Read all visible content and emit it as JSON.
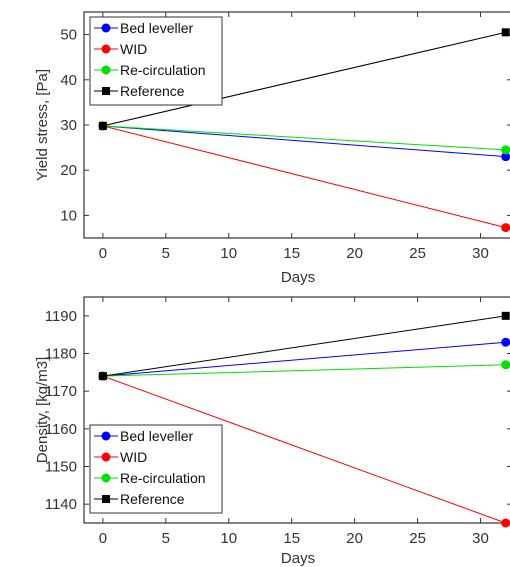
{
  "chart_data": [
    {
      "type": "line",
      "x": [
        0,
        32
      ],
      "xlabel": "Days",
      "ylabel": "Yield stress, [Pa]",
      "xlim": [
        -1.5,
        32.5
      ],
      "ylim": [
        5,
        55
      ],
      "xticks": [
        "0",
        "5",
        "10",
        "15",
        "20",
        "25",
        "30"
      ],
      "yticks": [
        "10",
        "20",
        "30",
        "40",
        "50"
      ],
      "legend_position": "top-left",
      "series": [
        {
          "name": "Bed leveller",
          "color": "#0000ff",
          "marker": "circle",
          "values": [
            29.8,
            23.0
          ]
        },
        {
          "name": "WID",
          "color": "#ff0000",
          "marker": "circle",
          "values": [
            29.8,
            7.3
          ]
        },
        {
          "name": "Re-circulation",
          "color": "#00e000",
          "marker": "circle",
          "values": [
            29.8,
            24.5
          ]
        },
        {
          "name": "Reference",
          "color": "#000000",
          "marker": "square",
          "values": [
            29.8,
            50.5
          ]
        }
      ]
    },
    {
      "type": "line",
      "x": [
        0,
        32
      ],
      "xlabel": "Days",
      "ylabel": "Density, [kg/m3]",
      "xlim": [
        -1.5,
        32.5
      ],
      "ylim": [
        1135,
        1195
      ],
      "xticks": [
        "0",
        "5",
        "10",
        "15",
        "20",
        "25",
        "30"
      ],
      "yticks": [
        "1140",
        "1150",
        "1160",
        "1170",
        "1180",
        "1190"
      ],
      "legend_position": "bottom-left",
      "series": [
        {
          "name": "Bed leveller",
          "color": "#0000ff",
          "marker": "circle",
          "values": [
            1174,
            1183
          ]
        },
        {
          "name": "WID",
          "color": "#ff0000",
          "marker": "circle",
          "values": [
            1174,
            1135
          ]
        },
        {
          "name": "Re-circulation",
          "color": "#00e000",
          "marker": "circle",
          "values": [
            1174,
            1177
          ]
        },
        {
          "name": "Reference",
          "color": "#000000",
          "marker": "square",
          "values": [
            1174,
            1190
          ]
        }
      ]
    }
  ]
}
